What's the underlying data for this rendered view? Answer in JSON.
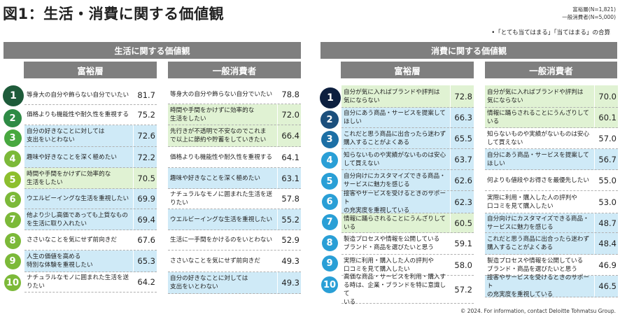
{
  "title": "図1：生活・消費に関する価値観",
  "legend": {
    "line1": "富裕層(N=1,821)",
    "line2": "一般消費者(N=5,000)"
  },
  "note": "•「とても当てはまる」「当てはまる」の合算",
  "footer": "© 2024. For information, contact Deloitte Tohmatsu Group.",
  "left_panel": {
    "header": "生活に関する価値観",
    "col_a": "富裕層",
    "col_b": "一般消費者",
    "rank_colors": [
      "#1e5b3a",
      "#2e8b45",
      "#48a83f",
      "#7cb939",
      "#8dbf2e",
      "#7cb939",
      "#7cb939",
      "#7cb939",
      "#7cb939",
      "#7cb939"
    ]
  },
  "right_panel": {
    "header": "消費に関する価値観",
    "col_a": "富裕層",
    "col_b": "一般消費者",
    "rank_colors": [
      "#0d1f3f",
      "#1b4f7c",
      "#1c6fa5",
      "#2a9fd6",
      "#2a9fd6",
      "#2a9fd6",
      "#2a9fd6",
      "#2a9fd6",
      "#2a9fd6",
      "#2a9fd6"
    ]
  },
  "chart_data": [
    {
      "type": "table",
      "title": "生活に関する価値観 — 富裕層",
      "unit": "%",
      "ranks": [
        1,
        2,
        3,
        4,
        5,
        6,
        7,
        8,
        9,
        10
      ],
      "categories": [
        "等身大の自分や飾らない自分でいたい",
        "価格よりも機能性や耐久性を重視する",
        "自分の好きなことに対しては支出をいとわない",
        "趣味や好きなことを深く極めたい",
        "時間や手間をかけずに効率的な生活をしたい",
        "ウエルビーイングな生活を重視したい",
        "他より少し高価であっても上質なものを生活に取り入れたい",
        "ささいなことを気にせず前向きだ",
        "人生の価値を高める特別な体験を重視したい",
        "ナチュラルなモノに囲まれた生活を送りたい"
      ],
      "values": [
        81.7,
        75.2,
        72.6,
        72.2,
        70.5,
        69.9,
        69.4,
        67.6,
        65.3,
        64.2
      ],
      "highlight": [
        "none",
        "none",
        "blue",
        "blue",
        "green",
        "blue",
        "blue",
        "none",
        "blue",
        "none"
      ]
    },
    {
      "type": "table",
      "title": "生活に関する価値観 — 一般消費者",
      "unit": "%",
      "categories": [
        "等身大の自分や飾らない自分でいたい",
        "時間や手間をかけずに効率的な生活をしたい",
        "先行きが不透明で不安なのでこれまで以上に節約や貯蓄をしていきたい",
        "価格よりも機能性や耐久性を重視する",
        "趣味や好きなことを深く極めたい",
        "ナチュラルなモノに囲まれた生活を送りたい",
        "ウエルビーイングな生活を重視したい",
        "生活に一手間をかけるのをいとわない",
        "ささいなことを気にせず前向きだ",
        "自分の好きなことに対しては支出をいとわない"
      ],
      "values": [
        78.8,
        72.0,
        66.4,
        64.1,
        63.1,
        57.8,
        55.2,
        52.9,
        49.3,
        49.3
      ],
      "highlight": [
        "none",
        "green",
        "green",
        "none",
        "blue",
        "none",
        "blue",
        "none",
        "none",
        "blue"
      ]
    },
    {
      "type": "table",
      "title": "消費に関する価値観 — 富裕層",
      "unit": "%",
      "ranks": [
        1,
        2,
        3,
        4,
        5,
        6,
        7,
        8,
        9,
        10
      ],
      "categories": [
        "自分が気に入ればブランドや評判は気にならない",
        "自分にあう商品・サービスを提案してほしい",
        "これだと思う商品に出合ったら迷わず購入することがよくある",
        "知らないものや実績がないものは安心して買えない",
        "自分向けにカスタマイズできる商品・サービスに魅力を感じる",
        "接客やサービスを受けるときのサポートの充実度を重視している",
        "情報に踊らされることにうんざりしている",
        "製造プロセスや情報を公開しているブランド・商品を選びたいと思う",
        "実際に利用・購入した人の評判や口コミを見て購入したい",
        "高価な商品・サービスを利用・購入する時は、企業・ブランドを特に意識している"
      ],
      "values": [
        72.8,
        66.3,
        65.5,
        63.7,
        62.6,
        62.3,
        60.5,
        59.1,
        58.0,
        57.2
      ],
      "highlight": [
        "green",
        "blue",
        "blue",
        "blue",
        "blue",
        "blue",
        "green",
        "none",
        "none",
        "none"
      ]
    },
    {
      "type": "table",
      "title": "消費に関する価値観 — 一般消費者",
      "unit": "%",
      "categories": [
        "自分が気に入ればブランドや評判は気にならない",
        "情報に踊らされることにうんざりしている",
        "知らないものや実績がないものは安心して買えない",
        "自分にあう商品・サービスを提案してほしい",
        "何よりも値段やお得さを最優先したい",
        "実際に利用・購入した人の評判や口コミを見て購入したい",
        "自分向けにカスタマイズできる商品・サービスに魅力を感じる",
        "これだと思う商品に出合ったら迷わず購入することがよくある",
        "製造プロセスや情報を公開しているブランド・商品を選びたいと思う",
        "接客やサービスを受けるときのサポートの充実度を重視している"
      ],
      "values": [
        70.0,
        60.1,
        57.0,
        56.7,
        55.0,
        53.0,
        48.7,
        48.4,
        46.9,
        46.5
      ],
      "highlight": [
        "green",
        "green",
        "none",
        "blue",
        "none",
        "none",
        "blue",
        "blue",
        "none",
        "blue"
      ]
    }
  ],
  "rows_display": {
    "left_a": [
      {
        "rank": "1",
        "text": "等身大の自分や飾らない自分でいたい",
        "value": "81.7"
      },
      {
        "rank": "2",
        "text": "価格よりも機能性や耐久性を重視する",
        "value": "75.2"
      },
      {
        "rank": "3",
        "text": "自分の好きなことに対しては\n支出をいとわない",
        "value": "72.6"
      },
      {
        "rank": "4",
        "text": "趣味や好きなことを深く極めたい",
        "value": "72.2"
      },
      {
        "rank": "5",
        "text": "時間や手間をかけずに効率的な\n生活をしたい",
        "value": "70.5"
      },
      {
        "rank": "6",
        "text": "ウエルビーイングな生活を重視したい",
        "value": "69.9"
      },
      {
        "rank": "7",
        "text": "他より少し高価であっても上質なもの\nを生活に取り入れたい",
        "value": "69.4"
      },
      {
        "rank": "8",
        "text": "ささいなことを気にせず前向きだ",
        "value": "67.6"
      },
      {
        "rank": "9",
        "text": "人生の価値を高める\n特別な体験を重視したい",
        "value": "65.3"
      },
      {
        "rank": "10",
        "text": "ナチュラルなモノに囲まれた生活を送りたい",
        "value": "64.2"
      }
    ],
    "left_b": [
      {
        "text": "等身大の自分や飾らない自分でいたい",
        "value": "78.8"
      },
      {
        "text": "時間や手間をかけずに効率的な\n生活をしたい",
        "value": "72.0"
      },
      {
        "text": "先行きが不透明で不安なのでこれま\nで以上に節約や貯蓄をしていきたい",
        "value": "66.4"
      },
      {
        "text": "価格よりも機能性や耐久性を重視する",
        "value": "64.1"
      },
      {
        "text": "趣味や好きなことを深く極めたい",
        "value": "63.1"
      },
      {
        "text": "ナチュラルなモノに囲まれた生活を送りたい",
        "value": "57.8"
      },
      {
        "text": "ウエルビーイングな生活を重視したい",
        "value": "55.2"
      },
      {
        "text": "生活に一手間をかけるのをいとわない",
        "value": "52.9"
      },
      {
        "text": "ささいなことを気にせず前向きだ",
        "value": "49.3"
      },
      {
        "text": "自分の好きなことに対しては\n支出をいとわない",
        "value": "49.3"
      }
    ],
    "right_a": [
      {
        "rank": "1",
        "text": "自分が気に入ればブランドや評判は\n気にならない",
        "value": "72.8"
      },
      {
        "rank": "2",
        "text": "自分にあう商品・サービスを提案してほしい",
        "value": "66.3"
      },
      {
        "rank": "3",
        "text": "これだと思う商品に出合ったら迷わず\n購入することがよくある",
        "value": "65.5"
      },
      {
        "rank": "4",
        "text": "知らないものや実績がないものは安心\nして買えない",
        "value": "63.7"
      },
      {
        "rank": "5",
        "text": "自分向けにカスタマイズできる商品・\nサービスに魅力を感じる",
        "value": "62.6"
      },
      {
        "rank": "6",
        "text": "接客やサービスを受けるときのサポート\nの充実度を重視している",
        "value": "62.3"
      },
      {
        "rank": "7",
        "text": "情報に踊らされることにうんざりしている",
        "value": "60.5"
      },
      {
        "rank": "8",
        "text": "製造プロセスや情報を公開している\nブランド・商品を選びたいと思う",
        "value": "59.1"
      },
      {
        "rank": "9",
        "text": "実際に利用・購入した人の評判や\n口コミを見て購入したい",
        "value": "58.0"
      },
      {
        "rank": "10",
        "text": "高価な商品・サービスを利用・購入す\nる時は、企業・ブランドを特に意識して\nいる",
        "value": "57.2"
      }
    ],
    "right_b": [
      {
        "text": "自分が気に入ればブランドや評判は\n気にならない",
        "value": "70.0"
      },
      {
        "text": "情報に踊らされることにうんざりしている",
        "value": "60.1"
      },
      {
        "text": "知らないものや実績がないものは安心\nして買えない",
        "value": "57.0"
      },
      {
        "text": "自分にあう商品・サービスを提案してほしい",
        "value": "56.7"
      },
      {
        "text": "何よりも値段やお得さを最優先したい",
        "value": "55.0"
      },
      {
        "text": "実際に利用・購入した人の評判や\n口コミを見て購入したい",
        "value": "53.0"
      },
      {
        "text": "自分向けにカスタマイズできる商品・\nサービスに魅力を感じる",
        "value": "48.7"
      },
      {
        "text": "これだと思う商品に出合ったら迷わず\n購入することがよくある",
        "value": "48.4"
      },
      {
        "text": "製造プロセスや情報を公開している\nブランド・商品を選びたいと思う",
        "value": "46.9"
      },
      {
        "text": "接客やサービスを受けるときのサポート\nの充実度を重視している",
        "value": "46.5"
      }
    ]
  }
}
